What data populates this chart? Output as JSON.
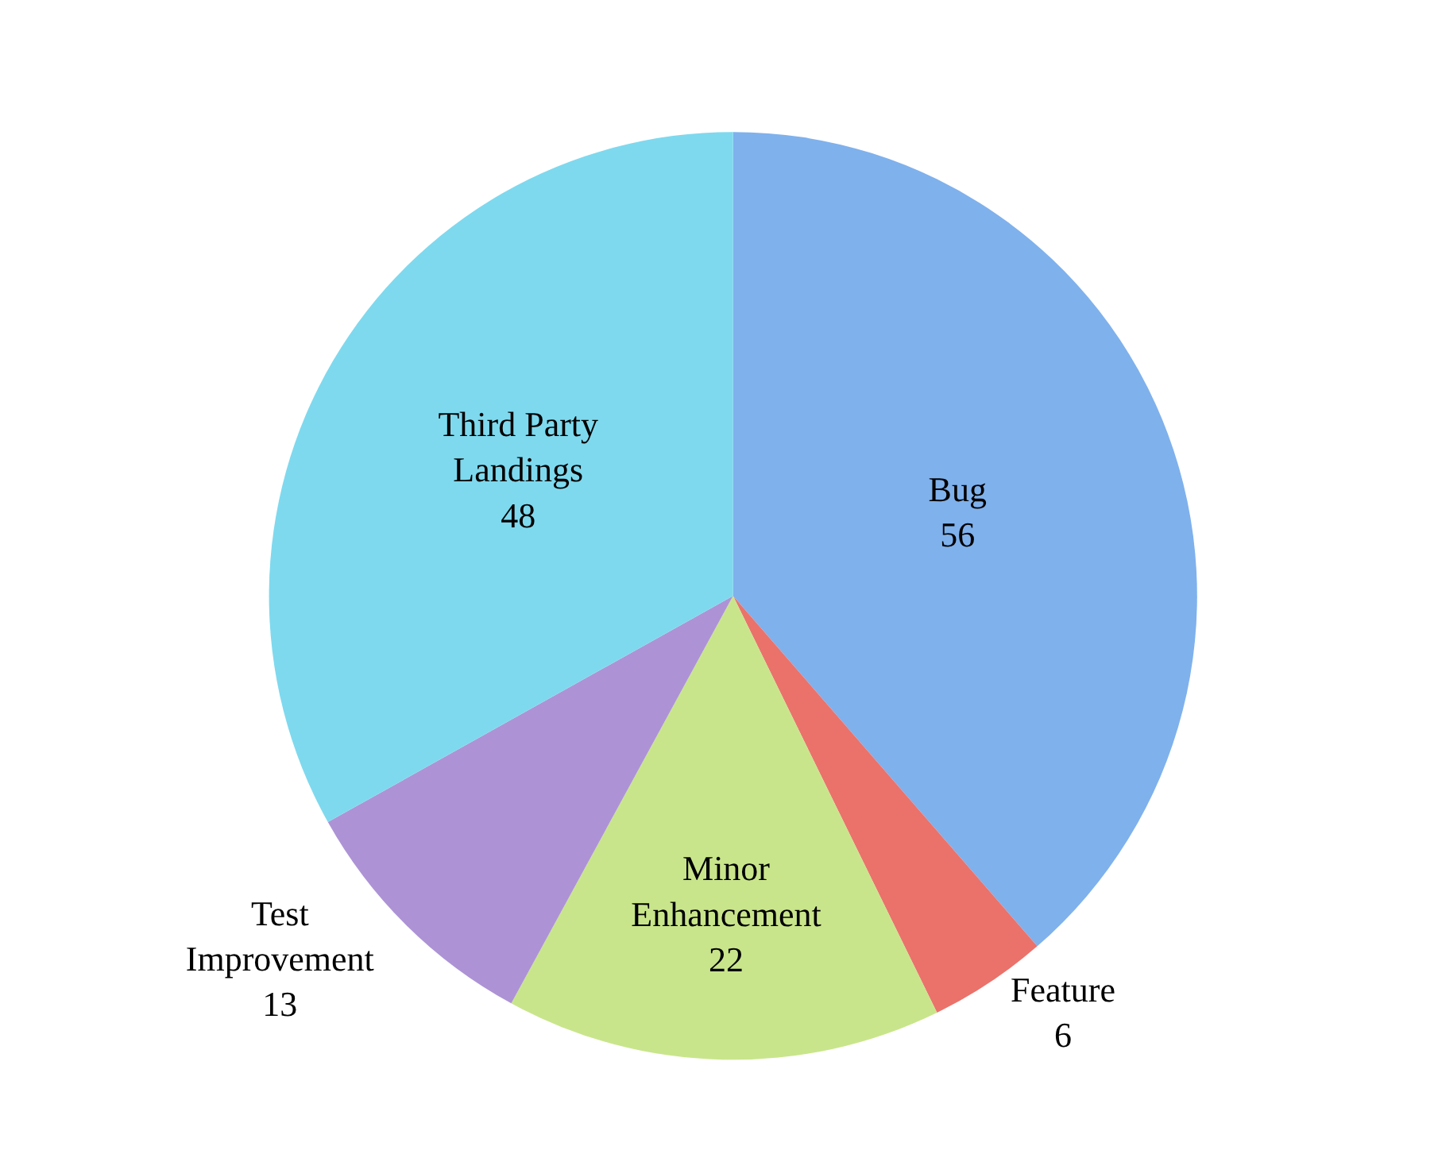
{
  "chart_data": {
    "type": "pie",
    "categories": [
      "Bug",
      "Feature",
      "Minor Enhancement",
      "Test Improvement",
      "Third Party Landings"
    ],
    "values": [
      56,
      6,
      22,
      13,
      48
    ],
    "colors": [
      "#7fb1ec",
      "#ea726b",
      "#c9e58b",
      "#ad93d5",
      "#7ed9ee"
    ],
    "data_labels": true,
    "legend": false
  }
}
